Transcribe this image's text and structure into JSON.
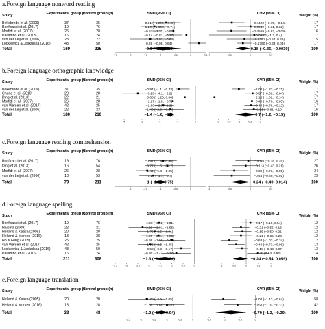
{
  "chart_data": [
    {
      "type": "forest",
      "title": "a.Foreign language nonword reading",
      "headers": {
        "study": "Study",
        "exp": "Experimental group (n)",
        "ctrl": "Control group (n)",
        "smd": "SMD (95% CI)",
        "cvr": "CVR (95% CI)",
        "weight": "Weight (%)"
      },
      "studies": [
        {
          "name": "Bekebrede et al. (2009)",
          "exp": "37",
          "ctrl": "35",
          "smd": "−0.81 (−1.295, −0.33)",
          "smd_est": -0.81,
          "smd_ci": [
            -1.295,
            -0.33
          ],
          "cvr": "−0.4490 (−0.75, −0.14)",
          "cvr_est": -0.449,
          "cvr_ci": [
            -0.75,
            -0.14
          ],
          "weight": "17"
        },
        {
          "name": "Bonficacci et al. (2017)",
          "exp": "19",
          "ctrl": "76",
          "smd": "−1.20 (−1.658, −0.74)",
          "smd_est": -1.2,
          "smd_ci": [
            -1.658,
            -0.74
          ],
          "cvr": "0.0042 (−0.31, 0.32)",
          "cvr_est": 0.0042,
          "cvr_ci": [
            -0.31,
            0.32
          ],
          "weight": "17"
        },
        {
          "name": "Morfidi et al. (2007)",
          "exp": "26",
          "ctrl": "28",
          "smd": "−0.57 (−1.27, −0.96)",
          "smd_est": -0.57,
          "smd_ci": [
            -1.27,
            -0.96
          ],
          "cvr": "−0.4569 (−0.82, −0.09)",
          "cvr_est": -0.4569,
          "cvr_ci": [
            -0.82,
            -0.09
          ],
          "weight": "16"
        },
        {
          "name": "Palladino et al. (2013)",
          "exp": "16",
          "ctrl": "24",
          "smd": "−0.14 (−0.81, −0.27)",
          "smd_est": -0.14,
          "smd_ci": [
            -0.81,
            -0.27
          ],
          "cvr": "0.0987 (−1.2, 0.4)",
          "cvr_est": 0.0987,
          "cvr_ci": [
            -1.2,
            0.4
          ],
          "weight": "17"
        },
        {
          "name": "van der Leij et al. (2006)",
          "exp": "23",
          "ctrl": "22",
          "smd": "−1.34 (−2.02, −0.66)",
          "smd_est": -1.34,
          "smd_ci": [
            -2.02,
            -0.66
          ],
          "cvr": "−0.1391 (−0.57, 0.29)",
          "cvr_est": -0.1391,
          "cvr_ci": [
            -0.57,
            0.29
          ],
          "weight": "15"
        },
        {
          "name": "Lockiewicz & Jaskulska (2016)",
          "exp": "48",
          "ctrl": "50",
          "smd": "0.28 (−0.08, 0.64)",
          "smd_est": 0.28,
          "smd_ci": [
            -0.08,
            0.64
          ],
          "cvr": "−0.1790 (−0.33, 0.03)",
          "cvr_est": -0.179,
          "cvr_ci": [
            -0.33,
            0.03
          ],
          "weight": "17"
        }
      ],
      "total": {
        "label": "Total",
        "exp": "169",
        "ctrl": "235",
        "smd": "−0.9 (−1.5, −0.3)",
        "smd_est": -0.9,
        "smd_ci": [
          -1.5,
          -0.3
        ],
        "cvr": "−0.18 (−0.36, −0.0039)",
        "cvr_est": -0.18,
        "cvr_ci": [
          -0.36,
          -0.0039
        ],
        "weight": "100"
      },
      "smd_axis": {
        "range": [
          -2.5,
          0.5
        ],
        "ticks": [
          "-2.5",
          "-2",
          "-1.5",
          "-1",
          "-0.5",
          "0",
          "0.5"
        ],
        "ref": 0
      },
      "cvr_axis": {
        "range": [
          -1,
          0.5
        ],
        "ticks": [
          "-1",
          "-0.5",
          "0",
          "0.5"
        ],
        "ref": 0
      }
    },
    {
      "type": "forest",
      "title": "b.Foreign language orthographic knowledge",
      "headers": {
        "study": "Study",
        "exp": "Experimental group (n)",
        "ctrl": "Control group (n)",
        "smd": "SMD (95% CI)",
        "cvr": "CVR (95% CI)",
        "weight": "Weight (%)"
      },
      "studies": [
        {
          "name": "Bekebrede et al. (2009)",
          "exp": "37",
          "ctrl": "35",
          "smd": "−0.94 (−1.1, −0.33)",
          "smd_est": -0.94,
          "smd_ci": [
            -1.1,
            -0.33
          ],
          "cvr": "−1.02 (−1.33, −0.71)",
          "cvr_est": -1.02,
          "cvr_ci": [
            -1.33,
            -0.71
          ],
          "weight": "17"
        },
        {
          "name": "Chung et al. (2010)",
          "exp": "28",
          "ctrl": "28",
          "smd": "−3.23 (−4.1, −2.2)",
          "smd_est": -3.23,
          "smd_ci": [
            -4.1,
            -2.2
          ],
          "cvr": "−0.37 (−0.69, −0.04)",
          "cvr_est": -0.37,
          "cvr_ci": [
            -0.69,
            -0.04
          ],
          "weight": "17"
        },
        {
          "name": "Ding et al. (2013)",
          "exp": "22",
          "ctrl": "21",
          "smd": "−0.60 (−1.26, 0.06)",
          "smd_est": -0.6,
          "smd_ci": [
            -1.26,
            0.06
          ],
          "cvr": "−2.18 (−1.02, −0.14)",
          "cvr_est": -2.18,
          "cvr_ci": [
            -1.02,
            -0.14
          ],
          "weight": "17"
        },
        {
          "name": "Morfidi et al. (2007)",
          "exp": "26",
          "ctrl": "28",
          "smd": "−1.27 (−1.8, −0.7)",
          "smd_est": -1.27,
          "smd_ci": [
            -1.8,
            -0.7
          ],
          "cvr": "−0.40 (−0.76, −0.05)",
          "cvr_est": -0.4,
          "cvr_ci": [
            -0.76,
            -0.05
          ],
          "weight": "16"
        },
        {
          "name": "van Viersen et al. (2017)",
          "exp": "42",
          "ctrl": "25",
          "smd": "−1.80 (−2.3, −1.2)",
          "smd_est": -1.8,
          "smd_ci": [
            -2.3,
            -1.2
          ],
          "cvr": "−0.44 (−0.76, −0.12)",
          "cvr_est": -0.44,
          "cvr_ci": [
            -0.76,
            -0.12
          ],
          "weight": "17"
        },
        {
          "name": "van der Leij et al. (2006)",
          "exp": "22",
          "ctrl": "23",
          "smd": "−1.40 (−2.6, −0.66)",
          "smd_est": -1.4,
          "smd_ci": [
            -2.6,
            -0.66
          ],
          "cvr": "−0.31 (−0.81, 0.19)",
          "cvr_est": -0.31,
          "cvr_ci": [
            -0.81,
            0.19
          ],
          "weight": "16"
        }
      ],
      "total": {
        "label": "Total",
        "exp": "180",
        "ctrl": "210",
        "smd": "−1.4 (−1.6, −1.2)",
        "smd_est": -1.4,
        "smd_ci": [
          -1.6,
          -1.2
        ],
        "cvr": "−0.7 (−1.2, −0.15)",
        "cvr_est": -0.7,
        "cvr_ci": [
          -1.2,
          -0.15
        ],
        "weight": "100"
      },
      "smd_axis": {
        "range": [
          -4.5,
          0.5
        ],
        "ticks": [
          "-4",
          "-3",
          "-2",
          "-1",
          "0"
        ],
        "ref": 0
      },
      "cvr_axis": {
        "range": [
          -2.5,
          0.5
        ],
        "ticks": [
          "-2",
          "-1.5",
          "-1",
          "-0.5",
          "0"
        ],
        "ref": 0
      }
    },
    {
      "type": "forest",
      "title": "c.Foreign language reading comprehension",
      "headers": {
        "study": "Study",
        "exp": "Experimental group (n)",
        "ctrl": "Control group (n)",
        "smd": "SMD (95% CI)",
        "cvr": "CVR (95% CI)",
        "weight": "Weight (%)"
      },
      "studies": [
        {
          "name": "Bonficacci et al. (2017)",
          "exp": "19",
          "ctrl": "76",
          "smd": "−0.91 (−1.4, −0.46)",
          "smd_est": -0.91,
          "smd_ci": [
            -1.4,
            -0.46
          ],
          "cvr": "−0.049 (−0.36, 0.26)",
          "cvr_est": -0.049,
          "cvr_ci": [
            -0.36,
            0.26
          ],
          "weight": "27"
        },
        {
          "name": "Ding et al. (2013)",
          "exp": "16",
          "ctrl": "54",
          "smd": "−0.77 (−1.5, −0.17)",
          "smd_est": -0.77,
          "smd_ci": [
            -1.5,
            -0.17
          ],
          "cvr": "−0.113 (−0.43, 0.21)",
          "cvr_est": -0.113,
          "cvr_ci": [
            -0.43,
            0.21
          ],
          "weight": "26"
        },
        {
          "name": "Morfidi et al. (2007)",
          "exp": "26",
          "ctrl": "28",
          "smd": "−1.44 (−1.8, −1.05)",
          "smd_est": -1.44,
          "smd_ci": [
            -1.8,
            -1.05
          ],
          "cvr": "−0.39 (−0.73, −0.05)",
          "cvr_est": -0.39,
          "cvr_ci": [
            -0.73,
            -0.05
          ],
          "weight": "24"
        },
        {
          "name": "van der Leij et al. (2006)",
          "exp": "18",
          "ctrl": "53",
          "smd": "−1.24 (−1.7, −0.7)",
          "smd_est": -1.24,
          "smd_ci": [
            -1.7,
            -0.7
          ],
          "cvr": "−0.45 (−0.89, −0.01)",
          "cvr_est": -0.45,
          "cvr_ci": [
            -0.89,
            -0.01
          ],
          "weight": "23"
        }
      ],
      "total": {
        "label": "Total",
        "exp": "79",
        "ctrl": "211",
        "smd": "−1 (−1.3, −0.75)",
        "smd_est": -1,
        "smd_ci": [
          -1.3,
          -0.75
        ],
        "cvr": "−0.24 (−0.49, 0.014)",
        "cvr_est": -0.24,
        "cvr_ci": [
          -0.49,
          0.014
        ],
        "weight": "100"
      },
      "smd_axis": {
        "range": [
          -2.5,
          0.5
        ],
        "ticks": [
          "-2",
          "-1.5",
          "-1",
          "-0.5",
          "0"
        ],
        "ref": 0
      },
      "cvr_axis": {
        "range": [
          -1,
          0.5
        ],
        "ticks": [
          "-1",
          "-0.5",
          "0",
          "0.5"
        ],
        "ref": 0
      }
    },
    {
      "type": "forest",
      "title": "d.Foreign language spelling",
      "headers": {
        "study": "Study",
        "exp": "Experimental group (n)",
        "ctrl": "Control group (n)",
        "smd": "SMD (95% CI)",
        "cvr": "CVR (95% CI)",
        "weight": "Weight (%)"
      },
      "studies": [
        {
          "name": "Bonficacci et al. (2017)",
          "exp": "19",
          "ctrl": "76",
          "smd": "−1.56 (−2.11, −1.01)",
          "smd_est": -1.56,
          "smd_ci": [
            -2.11,
            -1.01
          ],
          "cvr": "0.17 (−0.19, 0.54)",
          "cvr_est": 0.17,
          "cvr_ci": [
            -0.19,
            0.54
          ],
          "weight": "12"
        },
        {
          "name": "Haisma (2009)",
          "exp": "22",
          "ctrl": "21",
          "smd": "−2.29 (−2.91, −1.55)",
          "smd_est": -2.29,
          "smd_ci": [
            -2.91,
            -1.55
          ],
          "cvr": "−0.21 (−0.55, 0.13)",
          "cvr_est": -0.21,
          "cvr_ci": [
            -0.55,
            0.13
          ],
          "weight": "12"
        },
        {
          "name": "Helland & Kaasa (2005)",
          "exp": "20",
          "ctrl": "20",
          "smd": "−1.76 (−2.5, −1.01)",
          "smd_est": -1.76,
          "smd_ci": [
            -2.5,
            -1.01
          ],
          "cvr": "−0.15 (−0.50, 0.21)",
          "cvr_est": -0.15,
          "cvr_ci": [
            -0.5,
            0.21
          ],
          "weight": "12"
        },
        {
          "name": "Helland & Morken (2016)",
          "exp": "13",
          "ctrl": "28",
          "smd": "−1.59 (−2.34, −0.85)",
          "smd_est": -1.59,
          "smd_ci": [
            -2.34,
            -0.85
          ],
          "cvr": "−0.21 (−0.65, 0.23)",
          "cvr_est": -0.21,
          "cvr_ci": [
            -0.65,
            0.23
          ],
          "weight": "12"
        },
        {
          "name": "Ho & Fong (2005)",
          "exp": "25",
          "ctrl": "25",
          "smd": "−0.99 (−1.59, −0.40)",
          "smd_est": -0.99,
          "smd_ci": [
            -1.59,
            -0.4
          ],
          "cvr": "−0.68 (−1.03, −0.34)",
          "cvr_est": -0.68,
          "cvr_ci": [
            -1.03,
            -0.34
          ],
          "weight": "12"
        },
        {
          "name": "van Viersen et al. (2017)",
          "exp": "42",
          "ctrl": "25",
          "smd": "−1.95 (−2.5, −1.45)",
          "smd_est": -1.95,
          "smd_ci": [
            -2.5,
            -1.45
          ],
          "cvr": "−0.40 (−0.73, −0.06)",
          "cvr_est": -0.4,
          "cvr_ci": [
            -0.73,
            -0.06
          ],
          "weight": "13"
        },
        {
          "name": "Lockiewicz & Jaskulska (2016)",
          "exp": "48",
          "ctrl": "50",
          "smd": "−0.58 (−0.9, −0.17)",
          "smd_est": -0.58,
          "smd_ci": [
            -0.9,
            -0.17
          ],
          "cvr": "−0.18 (−0.43, 0.07)",
          "cvr_est": -0.18,
          "cvr_ci": [
            -0.43,
            0.07
          ],
          "weight": "13"
        },
        {
          "name": "Palladino et al. (2016)",
          "exp": "16",
          "ctrl": "24",
          "smd": "−0.80 (−1.44, −0.17)",
          "smd_est": -0.8,
          "smd_ci": [
            -1.44,
            -0.17
          ],
          "cvr": "0.48 (0.04, 0.92)",
          "cvr_est": 0.48,
          "cvr_ci": [
            0.04,
            0.92
          ],
          "weight": "14"
        }
      ],
      "total": {
        "label": "Total",
        "exp": "211",
        "ctrl": "308",
        "smd": "−1.3 (−1.8, −0.84)",
        "smd_est": -1.3,
        "smd_ci": [
          -1.8,
          -0.84
        ],
        "cvr": "−0.24 (−0.54, 0.059)",
        "cvr_est": -0.24,
        "cvr_ci": [
          -0.54,
          0.059
        ],
        "weight": "100"
      },
      "smd_axis": {
        "range": [
          -3.5,
          0.5
        ],
        "ticks": [
          "-3.5",
          "-3",
          "-2.5",
          "-2",
          "-1.5",
          "-1",
          "-0.5",
          "0"
        ],
        "ref": 0
      },
      "cvr_axis": {
        "range": [
          -1.5,
          1
        ],
        "ticks": [
          "-1",
          "-0.5",
          "0",
          "0.5",
          "1"
        ],
        "ref": 0
      }
    },
    {
      "type": "forest",
      "title": "e.Foreign language translation",
      "headers": {
        "study": "Study",
        "exp": "Experimental group (n)",
        "ctrl": "Control group (n)",
        "smd": "SMD (95% CI)",
        "cvr": "CVR (95% CI)",
        "weight": "Weight (%)"
      },
      "studies": [
        {
          "name": "Helland & Kaasa (2005)",
          "exp": "20",
          "ctrl": "20",
          "smd": "−1.78 (−2.5, −1.05)",
          "smd_est": -1.78,
          "smd_ci": [
            -2.5,
            -1.05
          ],
          "cvr": "−1.04 (−1.43, −0.64)",
          "cvr_est": -1.04,
          "cvr_ci": [
            -1.43,
            -0.64
          ],
          "weight": "58"
        },
        {
          "name": "Helland & Morken (2016)",
          "exp": "13",
          "ctrl": "28",
          "smd": "−1.00 (−1.69, −0.31)",
          "smd_est": -1,
          "smd_ci": [
            -1.69,
            -0.31
          ],
          "cvr": "−0.58 (−1.03, −0.13)",
          "cvr_est": -0.58,
          "cvr_ci": [
            -1.03,
            -0.13
          ],
          "weight": "42"
        }
      ],
      "total": {
        "label": "Total",
        "exp": "33",
        "ctrl": "48",
        "smd": "−1.2 (−1.5, −0.94)",
        "smd_est": -1.2,
        "smd_ci": [
          -1.5,
          -0.94
        ],
        "cvr": "−0.79 (−1.3, −0.29)",
        "cvr_est": -0.79,
        "cvr_ci": [
          -1.3,
          -0.29
        ],
        "weight": "100"
      },
      "smd_axis": {
        "range": [
          -3,
          0.5
        ],
        "ticks": [
          "-2.5",
          "-2",
          "-1.5",
          "-1",
          "-0.5",
          "0"
        ],
        "ref": 0
      },
      "cvr_axis": {
        "range": [
          -1.5,
          0.5
        ],
        "ticks": [
          "-1.5",
          "-1",
          "-0.5",
          "0"
        ],
        "ref": 0
      }
    }
  ]
}
